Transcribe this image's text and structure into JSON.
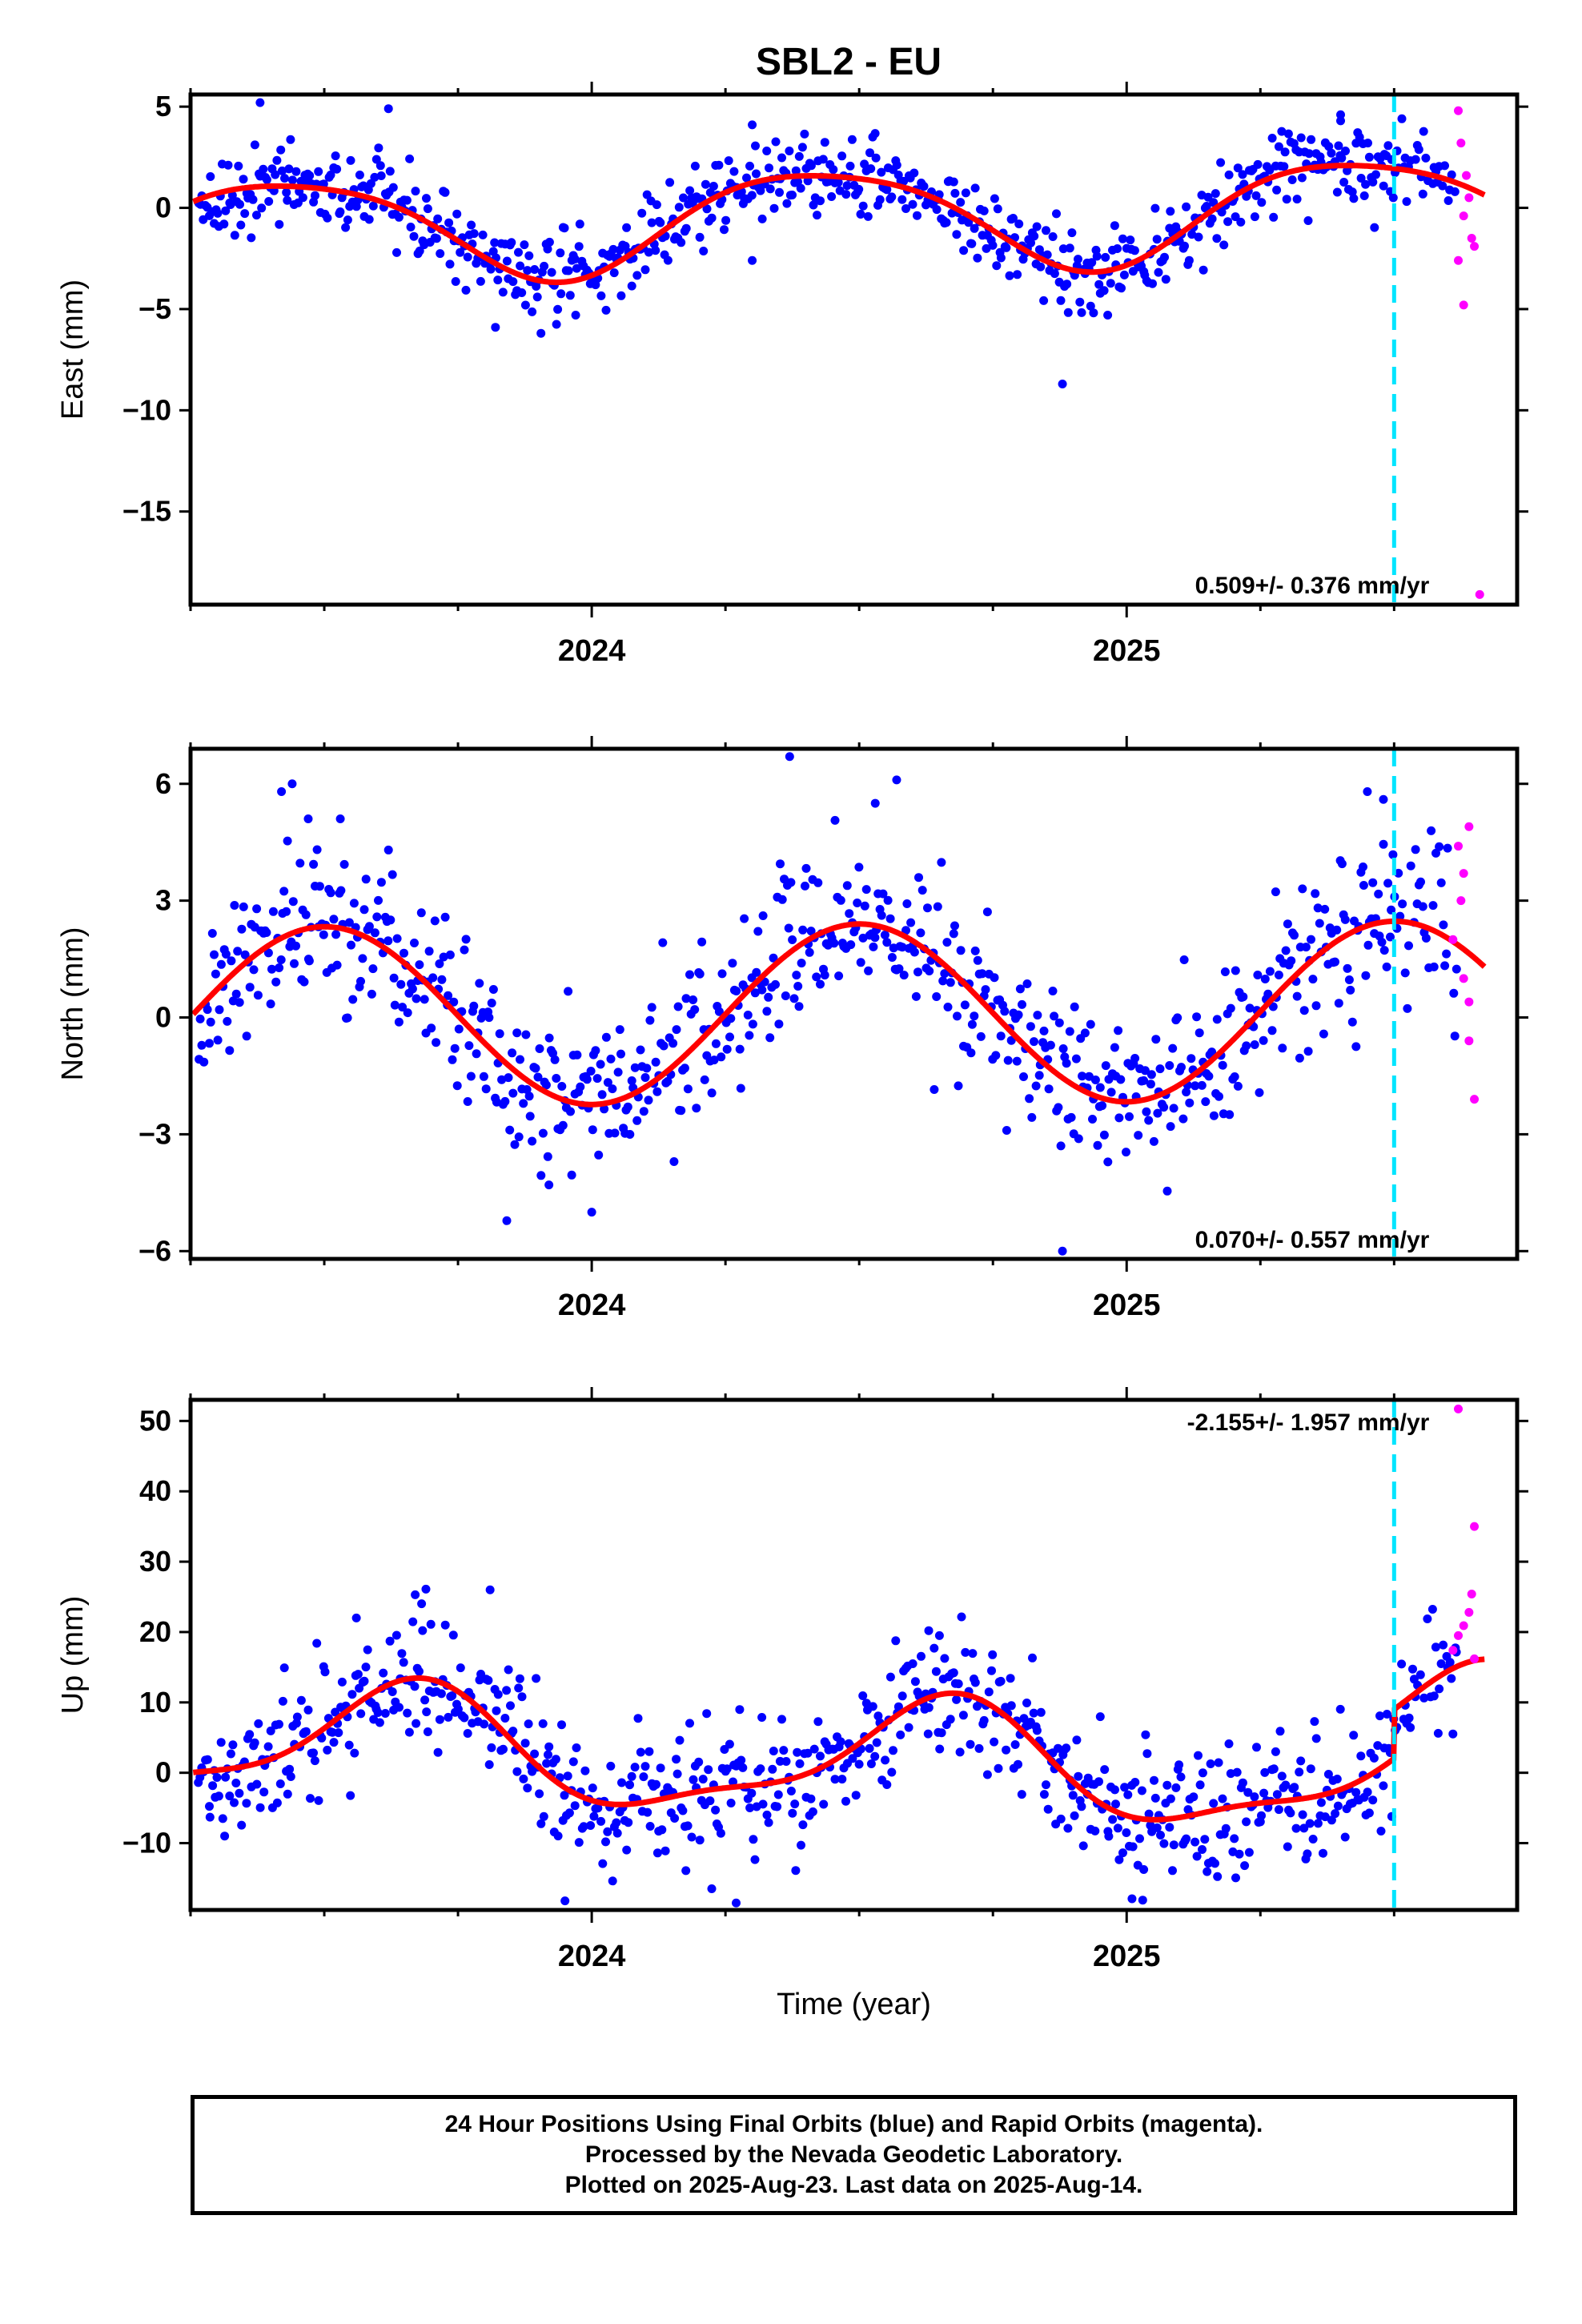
{
  "title": "SBL2 - EU",
  "footer": {
    "line1": "24 Hour Positions Using Final Orbits (blue) and Rapid Orbits (magenta).",
    "line2": "Processed by the Nevada Geodetic Laboratory.",
    "line3": "Plotted on 2025-Aug-23. Last data on 2025-Aug-14."
  },
  "colors": {
    "final": "#0000ff",
    "rapid": "#ff00ff",
    "model": "#ff0000",
    "marker": "#00e5ff"
  },
  "chart_data": [
    {
      "type": "scatter",
      "component": "east",
      "ylabel": "East (mm)",
      "xlabel": "",
      "xlim": [
        2023.25,
        2025.73
      ],
      "ylim": [
        -19.6,
        5.6
      ],
      "yticks": [
        5,
        0,
        -5,
        -10,
        -15
      ],
      "xticks": [
        2024,
        2025
      ],
      "x_minor_ticks": [
        2023.25,
        2023.5,
        2023.75,
        2024.25,
        2024.5,
        2024.75,
        2025.25,
        2025.5
      ],
      "marker_line_x": 2025.5,
      "rate_label": "0.509+/- 0.376 mm/yr",
      "rate_label_position": "bottom-right",
      "model": {
        "mean": -0.5,
        "trend": 0.509,
        "amp1": 2.5,
        "peak1": 0.43,
        "amp2": 0.4,
        "peak2": 0.2,
        "step": 0
      },
      "final_scatter_sd": 1.0,
      "final_outliers": [
        [
          2023.62,
          4.9
        ],
        [
          2023.38,
          5.2
        ],
        [
          2024.3,
          4.1
        ],
        [
          2025.4,
          4.6
        ],
        [
          2025.4,
          4.3
        ],
        [
          2023.82,
          -5.9
        ],
        [
          2023.97,
          -5.3
        ],
        [
          2024.88,
          -8.7
        ],
        [
          2024.3,
          -2.6
        ]
      ],
      "rapid_points": [
        [
          2025.62,
          4.8
        ],
        [
          2025.625,
          3.2
        ],
        [
          2025.635,
          1.6
        ],
        [
          2025.64,
          0.5
        ],
        [
          2025.63,
          -0.4
        ],
        [
          2025.645,
          -1.5
        ],
        [
          2025.62,
          -2.6
        ],
        [
          2025.65,
          -1.9
        ],
        [
          2025.63,
          -4.8
        ],
        [
          2025.66,
          -19.1
        ]
      ]
    },
    {
      "type": "scatter",
      "component": "north",
      "ylabel": "North (mm)",
      "xlabel": "",
      "xlim": [
        2023.25,
        2025.73
      ],
      "ylim": [
        -6.2,
        6.9
      ],
      "yticks": [
        6,
        3,
        0,
        -3,
        -6
      ],
      "xticks": [
        2024,
        2025
      ],
      "x_minor_ticks": [
        2023.25,
        2023.5,
        2023.75,
        2024.25,
        2024.5,
        2024.75,
        2025.25,
        2025.5
      ],
      "marker_line_x": 2025.5,
      "rate_label": "0.070+/- 0.557 mm/yr",
      "rate_label_position": "bottom-right",
      "model": {
        "mean": 0.1,
        "trend": 0.07,
        "amp1": 2.3,
        "peak1": 0.5,
        "amp2": 0,
        "peak2": 0,
        "step": 0
      },
      "final_scatter_sd": 1.1,
      "final_outliers": [
        [
          2023.42,
          5.8
        ],
        [
          2023.44,
          6.0
        ],
        [
          2023.47,
          5.1
        ],
        [
          2023.53,
          5.1
        ],
        [
          2023.62,
          4.3
        ],
        [
          2024.37,
          6.7
        ],
        [
          2024.53,
          5.5
        ],
        [
          2024.57,
          6.1
        ],
        [
          2024.88,
          -6.0
        ],
        [
          2024.0,
          -5.0
        ],
        [
          2023.92,
          -4.3
        ],
        [
          2025.45,
          5.8
        ],
        [
          2025.48,
          5.6
        ]
      ],
      "rapid_points": [
        [
          2025.62,
          4.4
        ],
        [
          2025.64,
          4.9
        ],
        [
          2025.63,
          3.7
        ],
        [
          2025.625,
          3.0
        ],
        [
          2025.61,
          2.0
        ],
        [
          2025.63,
          1.0
        ],
        [
          2025.64,
          0.4
        ],
        [
          2025.64,
          -0.6
        ],
        [
          2025.65,
          -2.1
        ]
      ]
    },
    {
      "type": "scatter",
      "component": "up",
      "ylabel": "Up (mm)",
      "xlabel": "Time (year)",
      "xlim": [
        2023.25,
        2025.73
      ],
      "ylim": [
        -19.5,
        53
      ],
      "yticks": [
        50,
        40,
        30,
        20,
        10,
        0,
        -10
      ],
      "xticks": [
        2024,
        2025
      ],
      "x_minor_ticks": [
        2023.25,
        2023.5,
        2023.75,
        2024.25,
        2024.5,
        2024.75,
        2025.25,
        2025.5
      ],
      "marker_line_x": 2025.5,
      "rate_label": "-2.155+/- 1.957 mm/yr",
      "rate_label_position": "top-right",
      "model": {
        "mean": 1.6,
        "trend": -2.155,
        "amp1": 7.8,
        "peak1": 0.65,
        "amp2": 2.5,
        "peak2": 0.2,
        "step": 7.0
      },
      "final_scatter_sd": 4.5,
      "final_outliers": [
        [
          2023.67,
          25.3
        ],
        [
          2023.69,
          26.1
        ],
        [
          2023.81,
          26.0
        ],
        [
          2023.95,
          -18.2
        ],
        [
          2024.27,
          -18.5
        ],
        [
          2024.63,
          20.2
        ],
        [
          2024.65,
          19.5
        ],
        [
          2025.01,
          -17.9
        ],
        [
          2025.03,
          -18.1
        ],
        [
          2023.56,
          22.0
        ]
      ],
      "rapid_points": [
        [
          2025.62,
          51.7
        ],
        [
          2025.65,
          35.0
        ],
        [
          2025.645,
          25.4
        ],
        [
          2025.64,
          22.8
        ],
        [
          2025.63,
          20.9
        ],
        [
          2025.62,
          19.5
        ],
        [
          2025.65,
          16.2
        ],
        [
          2025.61,
          17.4
        ]
      ]
    }
  ]
}
